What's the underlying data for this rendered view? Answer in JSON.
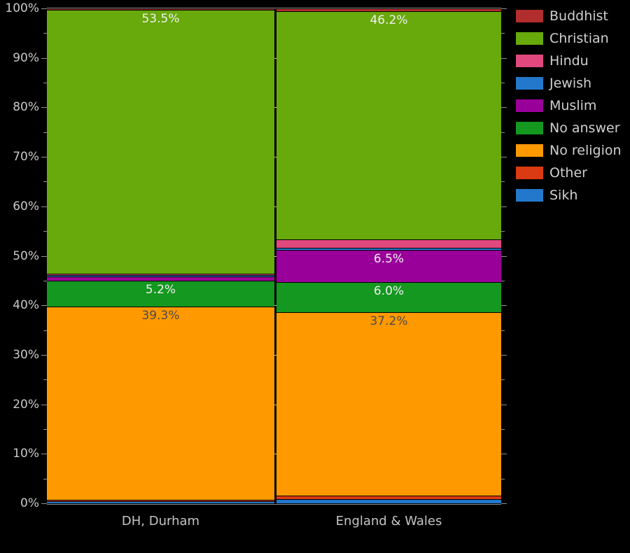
{
  "chart_data": {
    "type": "bar",
    "subtype": "percent-stacked-columns",
    "title": "",
    "categories": [
      "DH, Durham",
      "England & Wales"
    ],
    "series": [
      {
        "name": "Buddhist",
        "color": "#b22d2d",
        "values": [
          0.3,
          0.5
        ],
        "labels": [
          null,
          null
        ]
      },
      {
        "name": "Christian",
        "color": "#68a90c",
        "values": [
          53.5,
          46.2
        ],
        "labels": [
          "53.5%",
          "46.2%"
        ]
      },
      {
        "name": "Hindu",
        "color": "#e0487e",
        "values": [
          0.35,
          1.7
        ],
        "labels": [
          null,
          null
        ]
      },
      {
        "name": "Jewish",
        "color": "#2478cc",
        "values": [
          0.2,
          0.5
        ],
        "labels": [
          null,
          null
        ]
      },
      {
        "name": "Muslim",
        "color": "#990099",
        "values": [
          0.9,
          6.5
        ],
        "labels": [
          null,
          "6.5%"
        ]
      },
      {
        "name": "No answer",
        "color": "#14981f",
        "values": [
          5.2,
          6.0
        ],
        "labels": [
          "5.2%",
          "6.0%"
        ]
      },
      {
        "name": "No religion",
        "color": "#ff9900",
        "values": [
          39.3,
          37.2
        ],
        "labels": [
          "39.3%",
          "37.2%"
        ],
        "label_dark": true
      },
      {
        "name": "Other",
        "color": "#dc3a12",
        "values": [
          0.25,
          0.6
        ],
        "labels": [
          null,
          null
        ]
      },
      {
        "name": "Sikh",
        "color": "#2478cc",
        "values": [
          0.4,
          0.9
        ],
        "labels": [
          null,
          null
        ]
      }
    ],
    "y_axis": {
      "min": 0,
      "max": 100,
      "major_tick_step": 10,
      "minor_tick_step": 5,
      "tick_labels": [
        "0%",
        "10%",
        "20%",
        "30%",
        "40%",
        "50%",
        "60%",
        "70%",
        "80%",
        "90%",
        "100%"
      ]
    },
    "legend_position": "right",
    "stack_order": "alphabetical-top-to-bottom",
    "grid": "major-marks-in-column-gap"
  },
  "colors": {
    "background": "#000000",
    "axis_text": "#c9c9c9",
    "category_text": "#c4c4c4",
    "legend_text": "#cfcfcf",
    "tick": "#8f8f8f",
    "frame": "#8f8f8f",
    "segment_label_light": "#f0f0f0",
    "segment_label_dark": "#4a4a4a",
    "segment_separator": "#000000"
  }
}
